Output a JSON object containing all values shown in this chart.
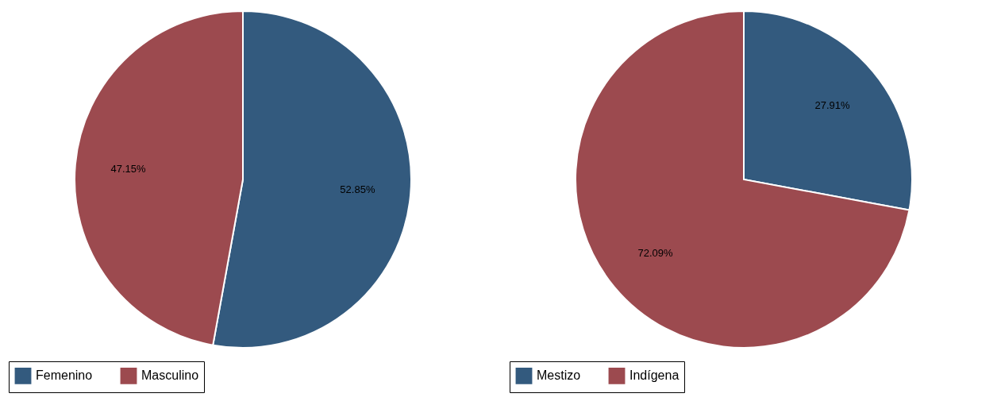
{
  "chart_data": [
    {
      "type": "pie",
      "categories": [
        "Femenino",
        "Masculino"
      ],
      "values": [
        52.85,
        47.15
      ],
      "colors": [
        "#335a7e",
        "#9c4a4f"
      ],
      "value_labels": [
        "52.85%",
        "47.15%"
      ],
      "legend": "bottom"
    },
    {
      "type": "pie",
      "categories": [
        "Mestizo",
        "Indígena"
      ],
      "values": [
        27.91,
        72.09
      ],
      "colors": [
        "#335a7e",
        "#9c4a4f"
      ],
      "value_labels": [
        "27.91%",
        "72.09%"
      ],
      "legend": "bottom"
    }
  ]
}
